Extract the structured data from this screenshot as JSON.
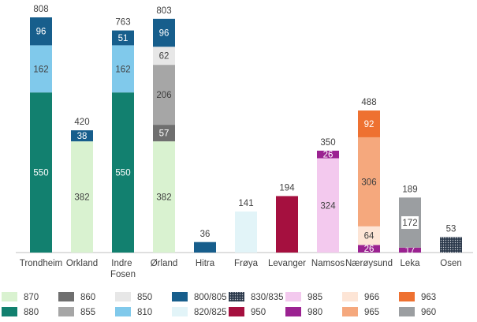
{
  "chart_data": {
    "type": "stacked_bar",
    "categories": [
      "Trondheim",
      "Orkland",
      "Indre Fosen",
      "Ørland",
      "Hitra",
      "Frøya",
      "Levanger",
      "Namsos",
      "Nærøysund",
      "Leka",
      "Osen"
    ],
    "totals": [
      808,
      420,
      763,
      803,
      36,
      141,
      194,
      350,
      488,
      189,
      53
    ],
    "series": [
      {
        "name": "870",
        "color": "#d9f2d0",
        "values": [
          null,
          382,
          null,
          382,
          null,
          null,
          null,
          null,
          null,
          null,
          null
        ]
      },
      {
        "name": "880",
        "color": "#12806f",
        "values": [
          550,
          null,
          550,
          null,
          null,
          null,
          null,
          null,
          null,
          null,
          null
        ]
      },
      {
        "name": "860",
        "color": "#6f6f6f",
        "values": [
          null,
          null,
          null,
          57,
          null,
          null,
          null,
          null,
          null,
          null,
          null
        ]
      },
      {
        "name": "855",
        "color": "#a6a6a6",
        "values": [
          null,
          null,
          null,
          206,
          null,
          null,
          null,
          null,
          null,
          null,
          null
        ]
      },
      {
        "name": "850",
        "color": "#e7e7e7",
        "values": [
          null,
          null,
          null,
          62,
          null,
          null,
          null,
          null,
          null,
          null,
          null
        ]
      },
      {
        "name": "810",
        "color": "#80c9eb",
        "values": [
          162,
          null,
          162,
          null,
          null,
          null,
          null,
          null,
          null,
          null,
          null
        ]
      },
      {
        "name": "800/805",
        "color": "#175e8c",
        "values": [
          96,
          38,
          51,
          96,
          36,
          null,
          null,
          null,
          null,
          null,
          null
        ]
      },
      {
        "name": "820/825",
        "color": "#e2f4f8",
        "values": [
          null,
          null,
          null,
          null,
          null,
          141,
          null,
          null,
          null,
          null,
          null
        ]
      },
      {
        "name": "830/835",
        "color": "#2c3a4c",
        "pattern": "dotted",
        "values": [
          null,
          null,
          null,
          null,
          null,
          null,
          null,
          null,
          null,
          null,
          53
        ]
      },
      {
        "name": "950",
        "color": "#a5103f",
        "values": [
          null,
          null,
          null,
          null,
          null,
          null,
          194,
          null,
          null,
          null,
          null
        ]
      },
      {
        "name": "985",
        "color": "#f3c9ee",
        "values": [
          null,
          null,
          null,
          null,
          null,
          null,
          null,
          324,
          null,
          null,
          null
        ]
      },
      {
        "name": "980",
        "color": "#9b2291",
        "values": [
          null,
          null,
          null,
          null,
          null,
          null,
          null,
          26,
          26,
          17,
          null
        ]
      },
      {
        "name": "966",
        "color": "#fde5d6",
        "values": [
          null,
          null,
          null,
          null,
          null,
          null,
          null,
          null,
          64,
          null,
          null
        ]
      },
      {
        "name": "965",
        "color": "#f5a87d",
        "values": [
          null,
          null,
          null,
          null,
          null,
          null,
          null,
          null,
          306,
          null,
          null
        ]
      },
      {
        "name": "963",
        "color": "#ee7131",
        "values": [
          null,
          null,
          null,
          null,
          null,
          null,
          null,
          null,
          92,
          null,
          null
        ]
      },
      {
        "name": "960",
        "color": "#9b9ea1",
        "values": [
          null,
          null,
          null,
          null,
          null,
          null,
          null,
          null,
          null,
          172,
          null
        ]
      }
    ]
  }
}
